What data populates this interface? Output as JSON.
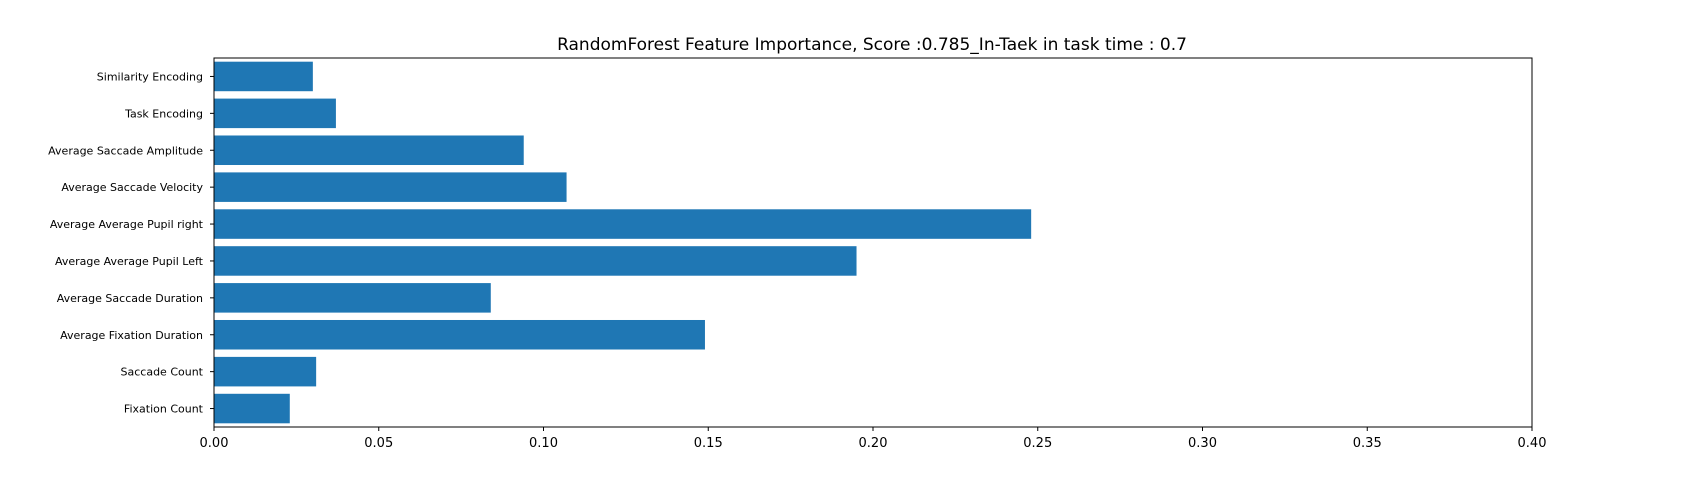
{
  "chart_data": {
    "type": "bar",
    "orientation": "horizontal",
    "title": "RandomForest Feature Importance, Score :0.785_In-Taek in task time : 0.7",
    "xlabel": "",
    "ylabel": "",
    "xlim": [
      0,
      0.4
    ],
    "xticks": [
      "0.00",
      "0.05",
      "0.10",
      "0.15",
      "0.20",
      "0.25",
      "0.30",
      "0.35",
      "0.40"
    ],
    "categories": [
      "Fixation Count",
      "Saccade Count",
      "Average Fixation Duration",
      "Average Saccade Duration",
      "Average Average Pupil Left",
      "Average Average Pupil right",
      "Average Saccade Velocity",
      "Average Saccade Amplitude",
      "Task Encoding",
      "Similarity Encoding"
    ],
    "values": [
      0.023,
      0.031,
      0.149,
      0.084,
      0.195,
      0.248,
      0.107,
      0.094,
      0.037,
      0.03
    ],
    "bar_color": "#1f77b4",
    "grid": false,
    "legend": "none"
  }
}
